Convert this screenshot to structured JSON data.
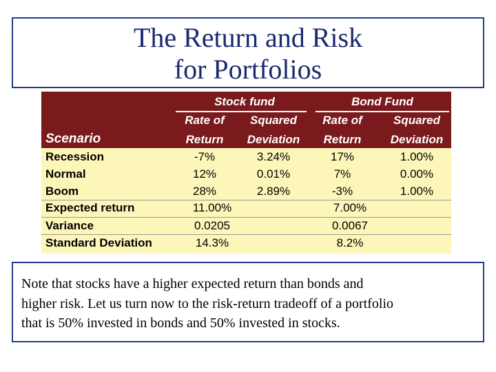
{
  "title": {
    "lines": [
      "The Return and Risk",
      "for Portfolios"
    ]
  },
  "table": {
    "groups": [
      "Stock fund",
      "Bond Fund"
    ],
    "header_top": [
      "Rate of",
      "Squared",
      "Rate of",
      "Squared"
    ],
    "header_bottom": [
      "Scenario",
      "Return",
      "Deviation",
      "Return",
      "Deviation"
    ],
    "scenarios": [
      [
        "Recession",
        "-7%",
        "3.24%",
        "17%",
        "1.00%"
      ],
      [
        "Normal",
        "12%",
        "0.01%",
        "7%",
        "0.00%"
      ],
      [
        "Boom",
        "28%",
        "2.89%",
        "-3%",
        "1.00%"
      ]
    ],
    "summary": [
      {
        "label": "Expected return",
        "stock": "11.00%",
        "bond": "7.00%"
      },
      {
        "label": "Variance",
        "stock": "0.0205",
        "bond": "0.0067"
      },
      {
        "label": "Standard Deviation",
        "stock": "14.3%",
        "bond": "8.2%"
      }
    ]
  },
  "note": {
    "lines": [
      "Note that stocks have a higher expected return than bonds and",
      "higher risk. Let us turn now to the risk-return tradeoff of a portfolio",
      "that is 50% invested in bonds and 50% invested in stocks."
    ]
  }
}
